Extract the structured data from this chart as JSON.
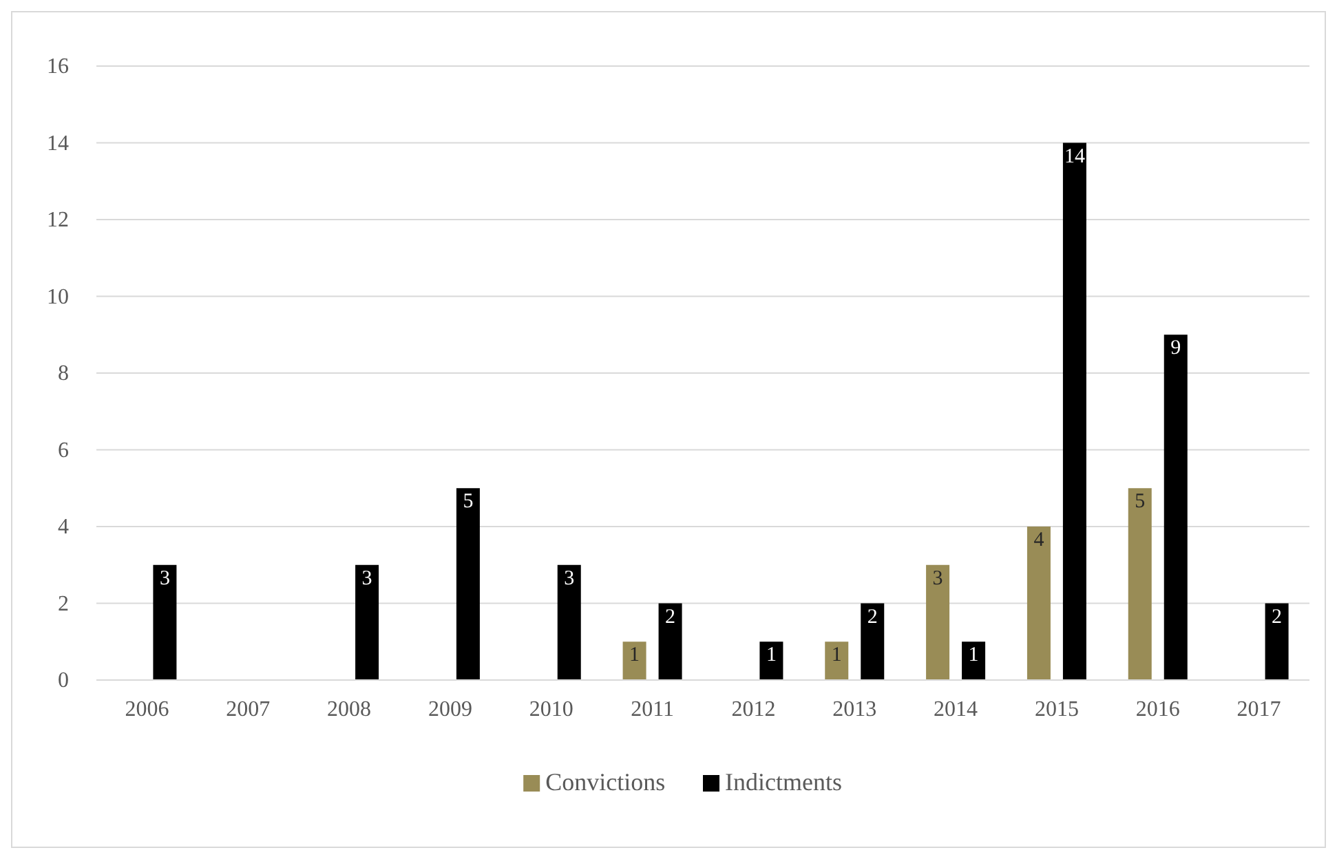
{
  "chart_data": {
    "type": "bar",
    "categories": [
      "2006",
      "2007",
      "2008",
      "2009",
      "2010",
      "2011",
      "2012",
      "2013",
      "2014",
      "2015",
      "2016",
      "2017"
    ],
    "series": [
      {
        "name": "Convictions",
        "color": "#998c56",
        "values": [
          null,
          null,
          null,
          null,
          null,
          1,
          null,
          1,
          3,
          4,
          5,
          null
        ]
      },
      {
        "name": "Indictments",
        "color": "#000000",
        "values": [
          3,
          null,
          3,
          5,
          3,
          2,
          1,
          2,
          1,
          14,
          9,
          2
        ]
      }
    ],
    "ylim": [
      0,
      16
    ],
    "yticks": [
      0,
      2,
      4,
      6,
      8,
      10,
      12,
      14,
      16
    ],
    "grid": "y",
    "legend": "bottom",
    "data_labels": true
  }
}
